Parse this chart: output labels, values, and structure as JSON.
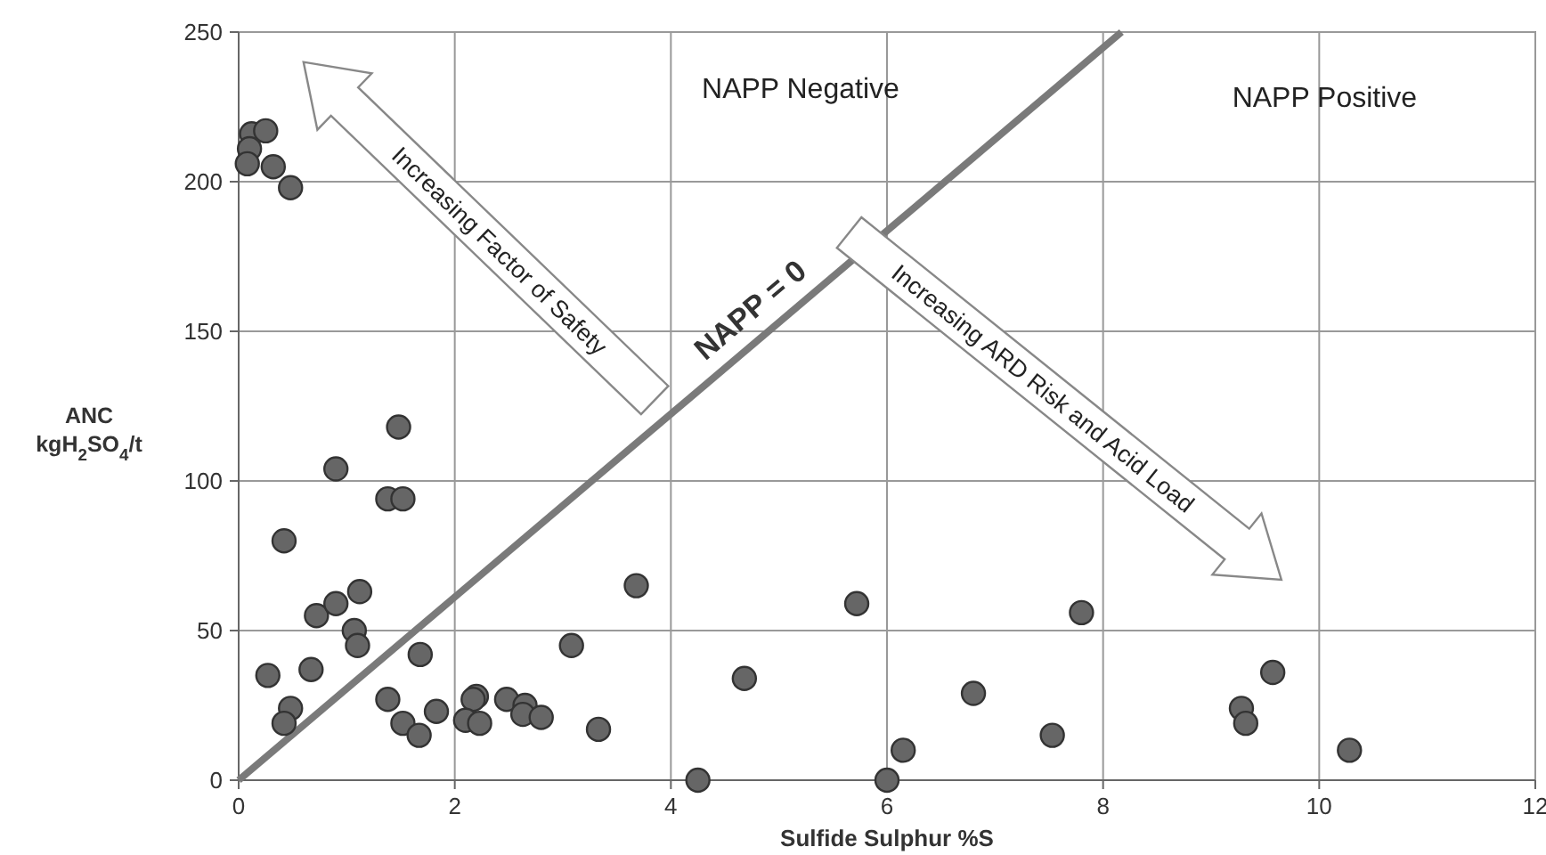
{
  "chart_data": {
    "type": "scatter",
    "xlabel": "Sulfide Sulphur %S",
    "ylabel": "ANC kgH$_{2}$SO$_{4}$/t",
    "xlim": [
      0,
      12
    ],
    "xticks": [
      0,
      2,
      4,
      6,
      8,
      10,
      12
    ],
    "ylim": [
      0,
      250
    ],
    "yticks": [
      0,
      50,
      100,
      150,
      200,
      250
    ],
    "grid": true,
    "marker": "circle",
    "series": [
      {
        "type": "line",
        "name": "NAPP = 0",
        "color": "#7a7a7a",
        "marker": "none",
        "x": [
          0,
          8.17
        ],
        "values": [
          0,
          250
        ]
      },
      {
        "type": "scatter",
        "color": "#666666",
        "x": [
          0.12,
          0.25,
          0.1,
          0.08,
          0.32,
          0.48,
          0.27,
          0.48,
          0.42,
          0.67,
          0.72,
          0.9,
          1.12,
          1.07,
          1.1,
          0.42,
          0.9,
          1.48,
          1.38,
          1.52,
          1.68,
          1.38,
          1.52,
          1.67,
          1.83,
          2.2,
          2.17,
          2.1,
          2.23,
          2.48,
          2.65,
          2.63,
          2.8,
          3.08,
          3.33,
          3.68,
          5.72,
          7.8,
          4.68,
          6.8,
          9.57,
          9.28,
          9.32,
          7.53,
          6.15,
          10.28,
          4.25,
          6.0
        ],
        "values": [
          216,
          217,
          211,
          206,
          205,
          198,
          35,
          24,
          19,
          37,
          55,
          59,
          63,
          50,
          45,
          80,
          104,
          118,
          94,
          94,
          42,
          27,
          19,
          15,
          23,
          28,
          27,
          20,
          19,
          27,
          25,
          22,
          21,
          45,
          17,
          65,
          59,
          56,
          34,
          29,
          36,
          24,
          19,
          15,
          10,
          10,
          0,
          0
        ]
      }
    ],
    "annotations": [
      "NAPP Negative",
      "NAPP Positive",
      "Increasing Factor of Safety",
      "Increasing ARD Risk and Acid Load"
    ]
  }
}
